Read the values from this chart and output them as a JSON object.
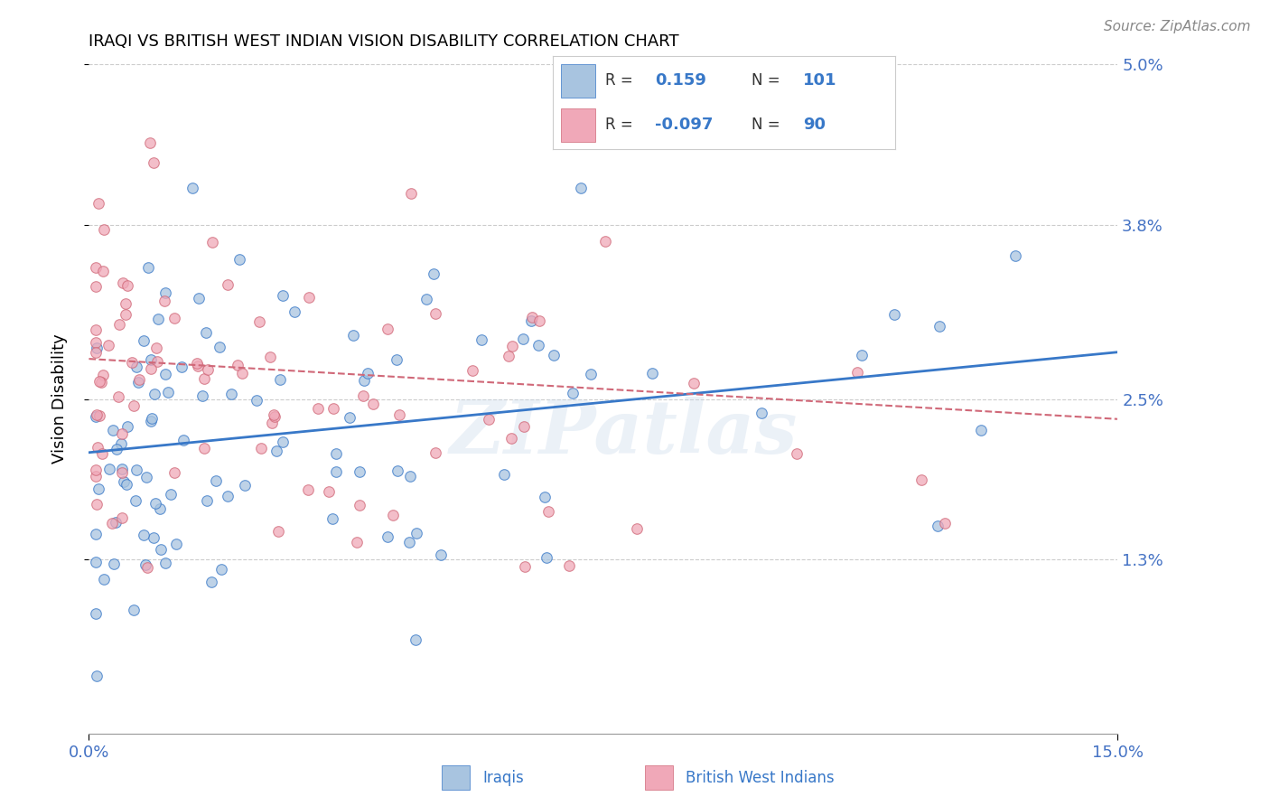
{
  "title": "IRAQI VS BRITISH WEST INDIAN VISION DISABILITY CORRELATION CHART",
  "source": "Source: ZipAtlas.com",
  "ylabel": "Vision Disability",
  "xlim": [
    0.0,
    0.15
  ],
  "ylim": [
    0.0,
    0.05
  ],
  "xtick_vals": [
    0.0,
    0.15
  ],
  "xtick_labels": [
    "0.0%",
    "15.0%"
  ],
  "ytick_vals": [
    0.013,
    0.025,
    0.038,
    0.05
  ],
  "ytick_labels": [
    "1.3%",
    "2.5%",
    "3.8%",
    "5.0%"
  ],
  "iraqis_color": "#a8c4e0",
  "bwi_color": "#f0a8b8",
  "trend_iraqi_color": "#3878c8",
  "trend_bwi_color": "#d06878",
  "legend_R_iraqi": "0.159",
  "legend_N_iraqi": "101",
  "legend_R_bwi": "-0.097",
  "legend_N_bwi": "90",
  "watermark": "ZIPatlas",
  "background": "#ffffff",
  "grid_color": "#cccccc",
  "tick_label_color": "#4472C4",
  "title_fontsize": 13,
  "axis_fontsize": 13,
  "legend_fontsize": 14,
  "iraqi_trend_intercept": 0.021,
  "iraqi_trend_slope": 0.05,
  "bwi_trend_intercept": 0.028,
  "bwi_trend_slope": -0.03
}
